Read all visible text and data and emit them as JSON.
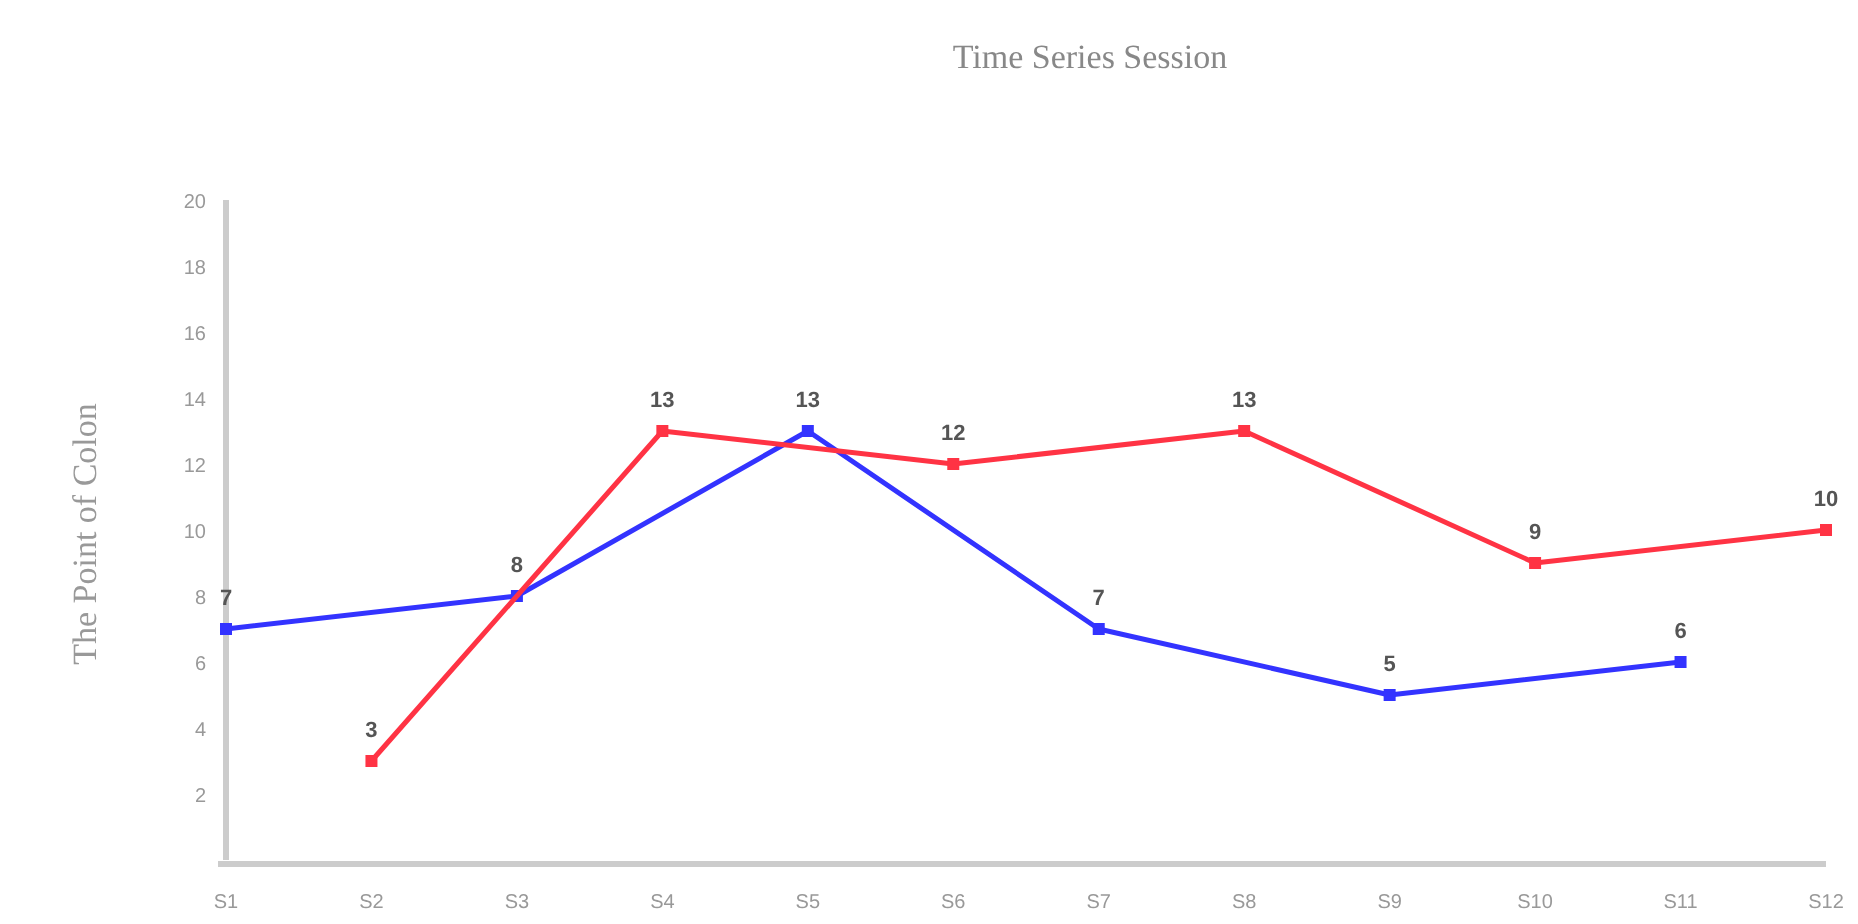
{
  "chart_data": {
    "type": "line",
    "title": "Time Series Session",
    "ylabel": "The Point of Colon",
    "categories": [
      "S1",
      "S2",
      "S3",
      "S4",
      "S5",
      "S6",
      "S7",
      "S8",
      "S9",
      "S10",
      "S11",
      "S12"
    ],
    "series": [
      {
        "color": "#3333ff",
        "values": [
          7,
          null,
          8,
          null,
          13,
          null,
          7,
          null,
          5,
          null,
          6,
          null
        ]
      },
      {
        "color": "#ff3344",
        "values": [
          null,
          3,
          null,
          13,
          null,
          12,
          null,
          13,
          null,
          9,
          null,
          10
        ]
      }
    ],
    "ylim": [
      0,
      20
    ],
    "yticks": [
      2,
      4,
      6,
      8,
      10,
      12,
      14,
      16,
      18,
      20
    ],
    "marker": "square",
    "data_labels": true,
    "grid": false
  }
}
